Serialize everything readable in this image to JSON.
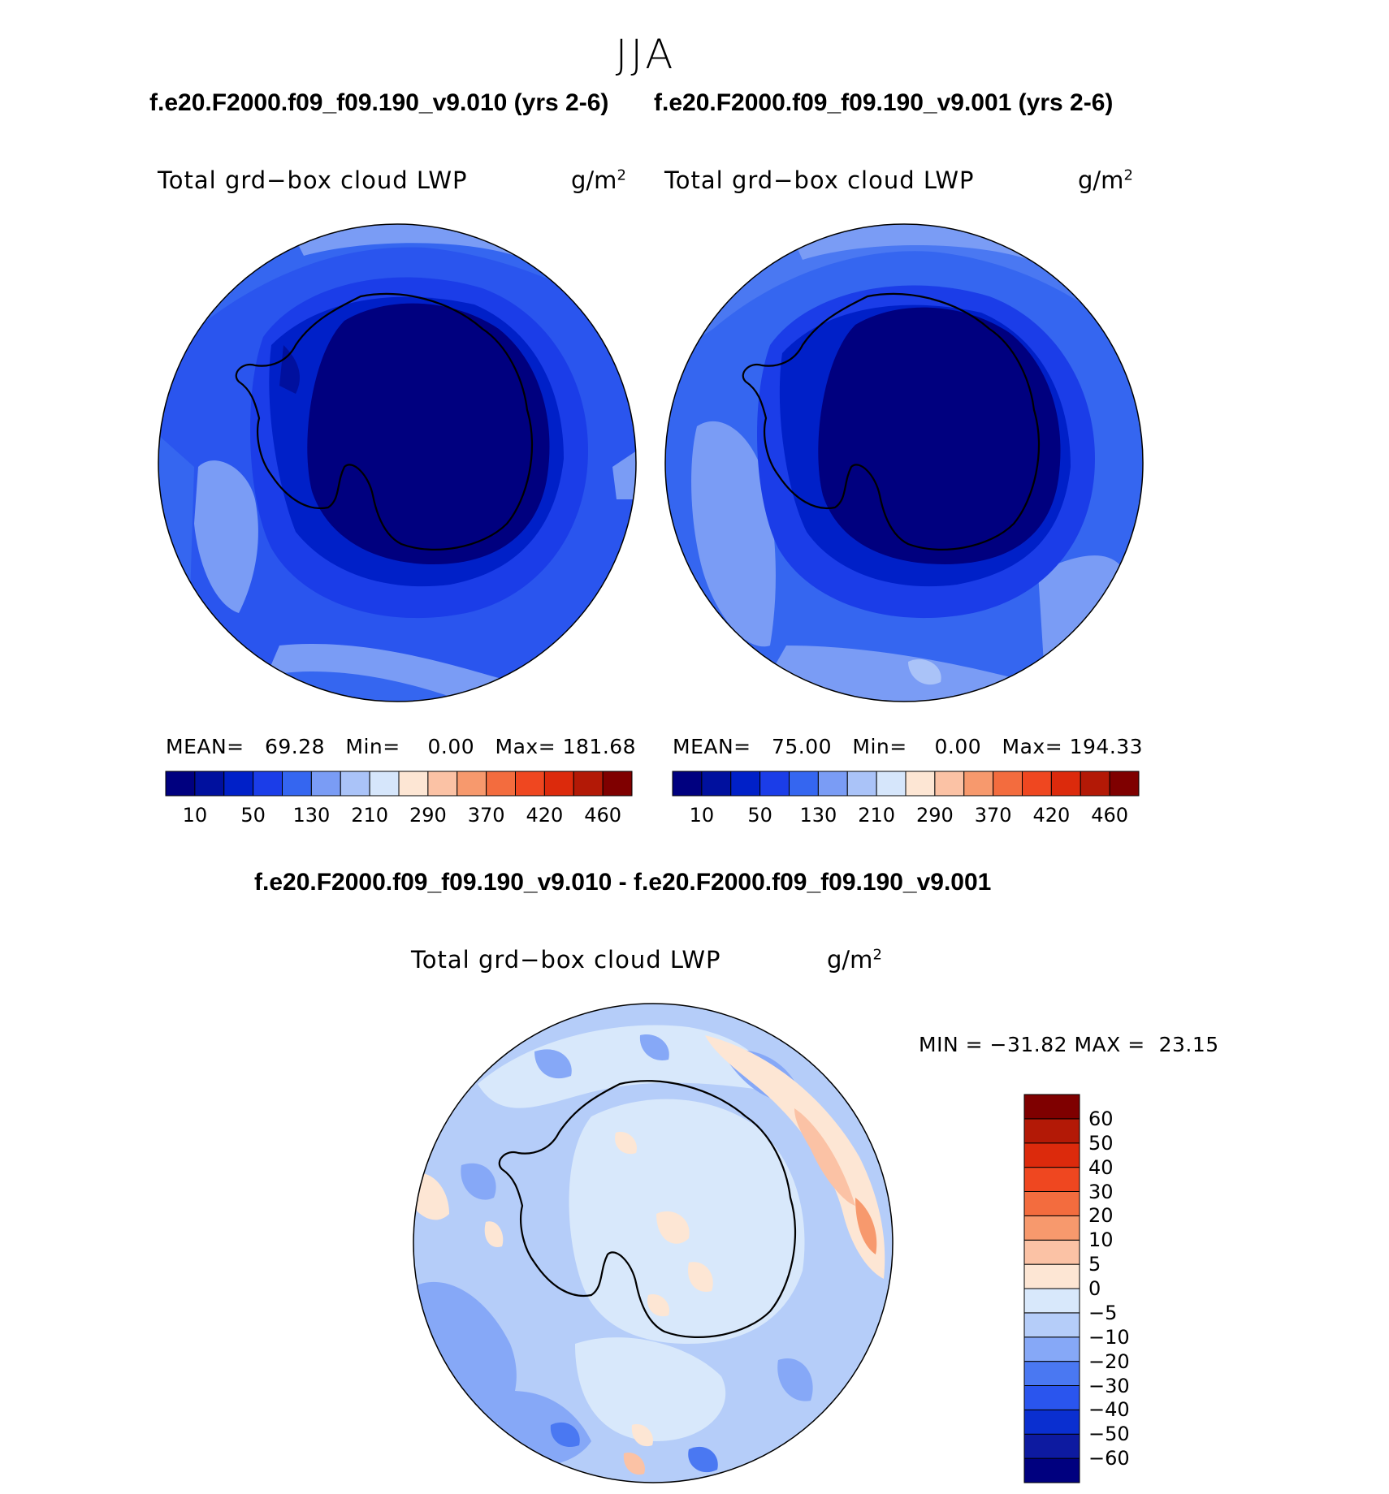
{
  "season_title": "JJA",
  "top_titles": {
    "left": "f.e20.F2000.f09_f09.190_v9.010 (yrs 2-6)",
    "right": "f.e20.F2000.f09_f09.190_v9.001 (yrs 2-6)"
  },
  "diff_title": "f.e20.F2000.f09_f09.190_v9.010 - f.e20.F2000.f09_f09.190_v9.001",
  "variable": "Total grd−box cloud LWP",
  "units_base": "g/m",
  "units_exp": "2",
  "panels": [
    {
      "mean_label": "MEAN=",
      "mean": "69.28",
      "min_label": "Min=",
      "min": "0.00",
      "max_label": "Max=",
      "max": "181.68"
    },
    {
      "mean_label": "MEAN=",
      "mean": "75.00",
      "min_label": "Min=",
      "min": "0.00",
      "max_label": "Max=",
      "max": "194.33"
    }
  ],
  "abs_colorbar": {
    "colors": [
      "#00007f",
      "#00109e",
      "#0020c8",
      "#1b3de8",
      "#3566f0",
      "#7a9cf5",
      "#aac3f8",
      "#d6e6fb",
      "#fde6d4",
      "#fbc2a5",
      "#f7996d",
      "#f36c3e",
      "#ef4720",
      "#dc2a0c",
      "#b31906",
      "#7f0000"
    ],
    "tick_labels": [
      "10",
      "50",
      "130",
      "210",
      "290",
      "370",
      "420",
      "460"
    ]
  },
  "diff_stats": {
    "min_label": "MIN =",
    "min": "−31.82",
    "max_label": "MAX =",
    "max": "23.15"
  },
  "diff_colorbar": {
    "colors": [
      "#00007f",
      "#0d1aa0",
      "#0a2fd0",
      "#2a55ee",
      "#4a78f2",
      "#86a8f7",
      "#b5cdf9",
      "#d8e8fb",
      "#fde6d4",
      "#fbc2a5",
      "#f7996d",
      "#f36c3e",
      "#ef4720",
      "#dc2a0c",
      "#b31906",
      "#7f0000"
    ],
    "tick_labels": [
      "60",
      "50",
      "40",
      "30",
      "20",
      "10",
      "5",
      "0",
      "−5",
      "−10",
      "−20",
      "−30",
      "−40",
      "−50",
      "−60"
    ]
  }
}
